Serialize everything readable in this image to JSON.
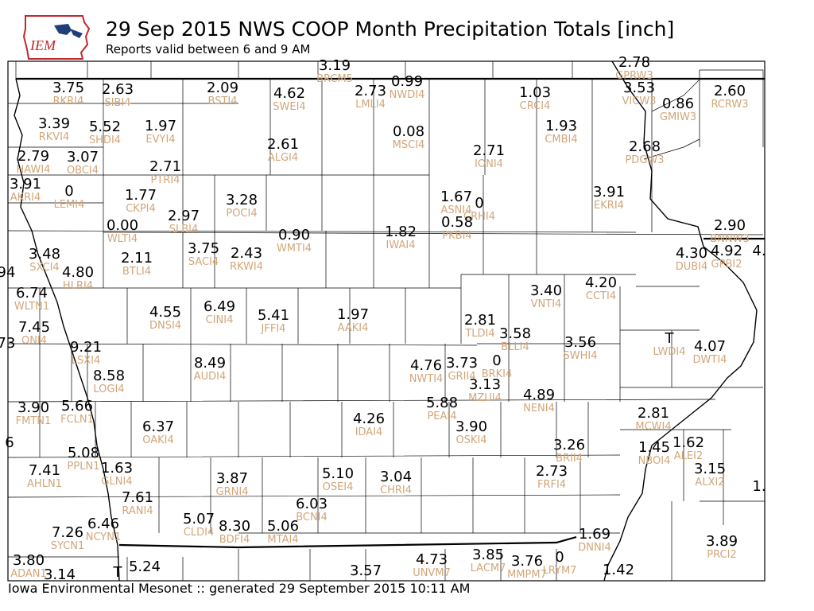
{
  "header": {
    "title": "29 Sep 2015 NWS COOP Month Precipitation Totals [inch]",
    "subtitle": "Reports valid between 6 and 9 AM",
    "logo_text": "IEM"
  },
  "footer": {
    "text": "Iowa Environmental Mesonet :: generated 29 September 2015 10:11 AM"
  },
  "colors": {
    "value": "#000000",
    "station_id": "#d2a679",
    "logo_red": "#c0282d",
    "logo_blue": "#1f3f7a"
  },
  "stations": [
    {
      "id": "RKRI4",
      "value": "3.75"
    },
    {
      "id": "SIBI4",
      "value": "2.63"
    },
    {
      "id": "BSTI4",
      "value": "2.09"
    },
    {
      "id": "SWEI4",
      "value": "4.62"
    },
    {
      "id": "BRCM5",
      "value": "3.19"
    },
    {
      "id": "LMLI4",
      "value": "2.73"
    },
    {
      "id": "NWDI4",
      "value": "0.99"
    },
    {
      "id": "CRCI4",
      "value": "1.03"
    },
    {
      "id": "GPRW3",
      "value": "2.78"
    },
    {
      "id": "VICW3",
      "value": "3.53"
    },
    {
      "id": "GMIW3",
      "value": "0.86"
    },
    {
      "id": "RCRW3",
      "value": "2.60"
    },
    {
      "id": "RKVI4",
      "value": "3.39"
    },
    {
      "id": "SHDI4",
      "value": "5.52"
    },
    {
      "id": "EVYI4",
      "value": "1.97"
    },
    {
      "id": "ALGI4",
      "value": "2.61"
    },
    {
      "id": "MSCI4",
      "value": "0.08"
    },
    {
      "id": "CMBI4",
      "value": "1.93"
    },
    {
      "id": "HAWI4",
      "value": "2.79"
    },
    {
      "id": "OBCI4",
      "value": "3.07"
    },
    {
      "id": "PTRI4",
      "value": "2.71"
    },
    {
      "id": "IONI4",
      "value": "2.71"
    },
    {
      "id": "PDGW3",
      "value": "2.68"
    },
    {
      "id": "AKRI4",
      "value": "3.91"
    },
    {
      "id": "LEMI4",
      "value": "0"
    },
    {
      "id": "CKPI4",
      "value": "1.77"
    },
    {
      "id": "POCI4",
      "value": "3.28"
    },
    {
      "id": "ASNI4",
      "value": "1.67"
    },
    {
      "id": "CRHI4",
      "value": "0"
    },
    {
      "id": "EKRI4",
      "value": "3.91"
    },
    {
      "id": "SLBI4",
      "value": "2.97"
    },
    {
      "id": "WLTI4",
      "value": "0.00"
    },
    {
      "id": "PKBI4",
      "value": "0.58"
    },
    {
      "id": "BNNW3",
      "value": "2.90"
    },
    {
      "id": "WMTI4",
      "value": "0.90"
    },
    {
      "id": "IWAI4",
      "value": "1.82"
    },
    {
      "id": "SXCI4",
      "value": "3.48"
    },
    {
      "id": "BTLI4",
      "value": "2.11"
    },
    {
      "id": "SACI4",
      "value": "3.75"
    },
    {
      "id": "RKWI4",
      "value": "2.43"
    },
    {
      "id": "DUBI4",
      "value": "4.30"
    },
    {
      "id": "GPBI2",
      "value": "4.92"
    },
    {
      "id": "HLRI4",
      "value": "4.80"
    },
    {
      "id": "WLTN1",
      "value": "6.74"
    },
    {
      "id": "VNTI4",
      "value": "3.40"
    },
    {
      "id": "CCTI4",
      "value": "4.20"
    },
    {
      "id": "DNSI4",
      "value": "4.55"
    },
    {
      "id": "CINI4",
      "value": "6.49"
    },
    {
      "id": "JFFI4",
      "value": "5.41"
    },
    {
      "id": "AAKI4",
      "value": "1.97"
    },
    {
      "id": "ONI4",
      "value": "7.45"
    },
    {
      "id": "TLDI4",
      "value": "2.81"
    },
    {
      "id": "BLLI4",
      "value": "3.58"
    },
    {
      "id": "SWHI4",
      "value": "3.56"
    },
    {
      "id": "LWDI4",
      "value": "T"
    },
    {
      "id": "DWTI4",
      "value": "4.07"
    },
    {
      "id": "LSXI4",
      "value": "9.21"
    },
    {
      "id": "AUDI4",
      "value": "8.49"
    },
    {
      "id": "NWTI4",
      "value": "4.76"
    },
    {
      "id": "GRII4",
      "value": "3.73"
    },
    {
      "id": "BRKI4",
      "value": "0"
    },
    {
      "id": "LOGI4",
      "value": "8.58"
    },
    {
      "id": "MZUI4",
      "value": "3.13"
    },
    {
      "id": "NENI4",
      "value": "4.89"
    },
    {
      "id": "FMTN1",
      "value": "3.90"
    },
    {
      "id": "FCLN1",
      "value": "5.66"
    },
    {
      "id": "PEAI4",
      "value": "5.88"
    },
    {
      "id": "MCWI4",
      "value": "2.81"
    },
    {
      "id": "OAKI4",
      "value": "6.37"
    },
    {
      "id": "IDAI4",
      "value": "4.26"
    },
    {
      "id": "OSKI4",
      "value": "3.90"
    },
    {
      "id": "ALEI2",
      "value": "1.62"
    },
    {
      "id": "BRII4",
      "value": "3.26"
    },
    {
      "id": "NBOI4",
      "value": "1.45"
    },
    {
      "id": "PPLN1",
      "value": "5.08"
    },
    {
      "id": "GLNI4",
      "value": "1.63"
    },
    {
      "id": "AHLN1",
      "value": "7.41"
    },
    {
      "id": "GRNI4",
      "value": "3.87"
    },
    {
      "id": "OSEI4",
      "value": "5.10"
    },
    {
      "id": "CHRI4",
      "value": "3.04"
    },
    {
      "id": "FRFI4",
      "value": "2.73"
    },
    {
      "id": "ALXI2",
      "value": "3.15"
    },
    {
      "id": "RANI4",
      "value": "7.61"
    },
    {
      "id": "BCNI4",
      "value": "6.03"
    },
    {
      "id": "CLDI4",
      "value": "5.07"
    },
    {
      "id": "BDFI4",
      "value": "8.30"
    },
    {
      "id": "MTAI4",
      "value": "5.06"
    },
    {
      "id": "SYCN1",
      "value": "7.26"
    },
    {
      "id": "NCYN1",
      "value": "6.46"
    },
    {
      "id": "DNNI4",
      "value": "1.69"
    },
    {
      "id": "PRCI2",
      "value": "3.89"
    },
    {
      "id": "UNVM7",
      "value": "4.73"
    },
    {
      "id": "LACM7",
      "value": "3.85"
    },
    {
      "id": "MMPM7",
      "value": "3.76"
    },
    {
      "id": "LRYM7",
      "value": "0"
    },
    {
      "id": "ADAN1",
      "value": "3.80"
    },
    {
      "id": "",
      "value": "3.14"
    },
    {
      "id": "",
      "value": "T"
    },
    {
      "id": "",
      "value": "5.24"
    },
    {
      "id": "",
      "value": "3.57"
    },
    {
      "id": "",
      "value": "1.42"
    },
    {
      "id": "",
      "value": "94"
    },
    {
      "id": "",
      "value": "73"
    },
    {
      "id": "",
      "value": "6"
    },
    {
      "id": "",
      "value": "4."
    },
    {
      "id": "",
      "value": "1."
    }
  ]
}
